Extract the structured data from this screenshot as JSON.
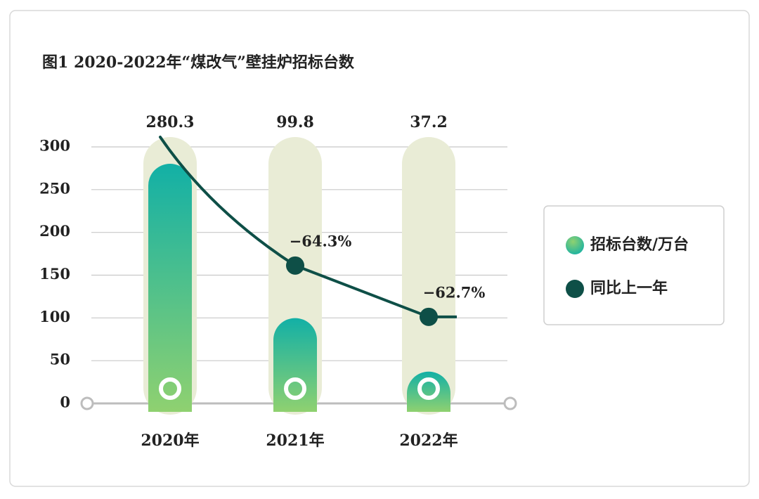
{
  "chart_data": {
    "type": "bar",
    "title": "图1 2020-2022年“煤改气”壁挂炉招标台数",
    "categories": [
      "2020年",
      "2021年",
      "2022年"
    ],
    "series": [
      {
        "name": "招标台数/万台",
        "type": "bar",
        "color": "#1fb3a5",
        "values": [
          280.3,
          99.8,
          37.2
        ]
      },
      {
        "name": "同比上一年",
        "type": "line",
        "axis": "y2",
        "color": "#0e4f47",
        "values": [
          null,
          -64.3,
          -62.7
        ],
        "value_labels": [
          null,
          "−64.3%",
          "−62.7%"
        ]
      }
    ],
    "ylim": [
      0,
      300
    ],
    "yticks": [
      0,
      50,
      100,
      150,
      200,
      250,
      300
    ],
    "y2lim": [
      -60,
      -68
    ],
    "grid": true,
    "legend": "right"
  }
}
